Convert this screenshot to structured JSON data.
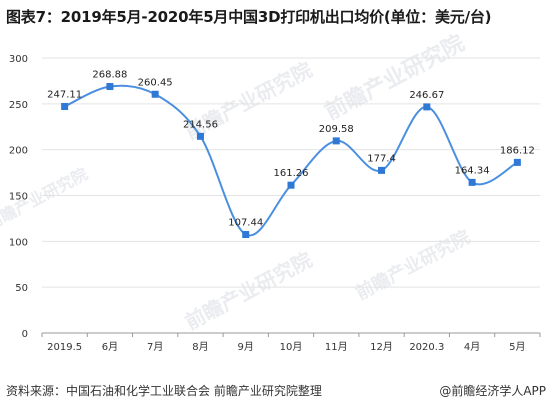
{
  "title": "图表7：2019年5月-2020年5月中国3D打印机出口均价(单位：美元/台)",
  "footer": {
    "source": "资料来源：中国石油和化学工业联合会 前瞻产业研究院整理",
    "credit": "@前瞻经济学人APP"
  },
  "watermark": {
    "text": "前瞻产业研究院"
  },
  "colors": {
    "line": "#4a8fe0",
    "marker": "#2f78d6",
    "grid": "#e3e3e3",
    "axis": "#9a9a9a"
  },
  "chart_data": {
    "type": "line",
    "title": "图表7：2019年5月-2020年5月中国3D打印机出口均价(单位：美元/台)",
    "categories": [
      "2019.5",
      "6月",
      "7月",
      "8月",
      "9月",
      "10月",
      "11月",
      "12月",
      "2020.3",
      "4月",
      "5月"
    ],
    "series": [
      {
        "values": [
          247.11,
          268.88,
          260.45,
          214.56,
          107.44,
          161.26,
          209.58,
          177.4,
          246.67,
          164.34,
          186.12
        ],
        "labels": [
          "247.11",
          "268.88",
          "260.45",
          "214.56",
          "107.44",
          "161.26",
          "209.58",
          "177.4",
          "246.67",
          "164.34",
          "186.12"
        ]
      }
    ],
    "ylim": [
      0,
      300
    ],
    "yticks": [
      0,
      50,
      100,
      150,
      200,
      250,
      300
    ],
    "grid": true,
    "smooth": true
  }
}
